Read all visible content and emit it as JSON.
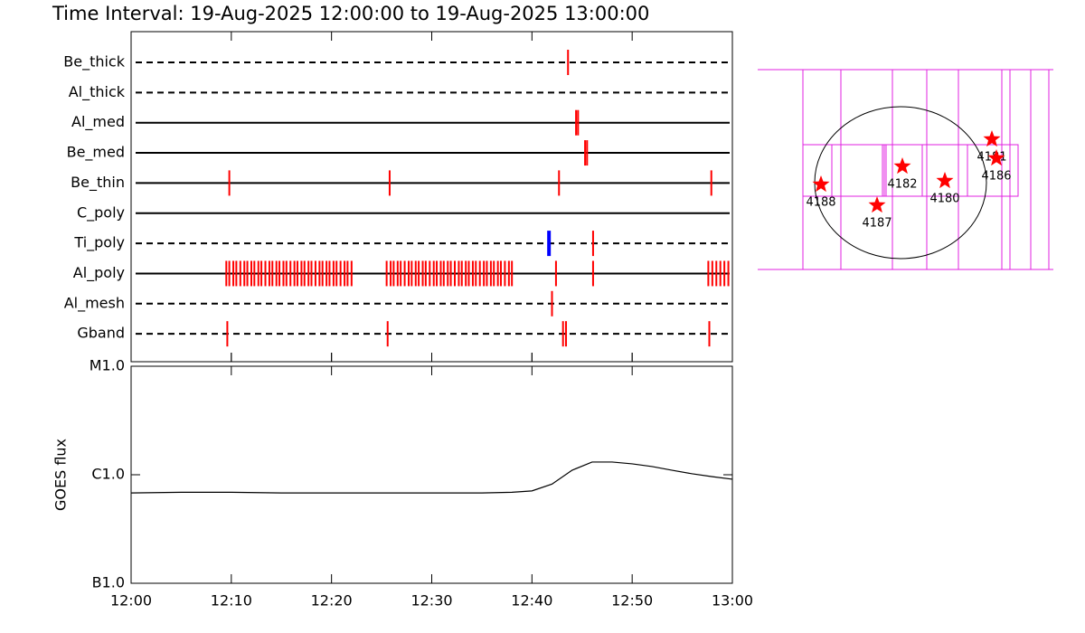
{
  "title": "Time Interval: 19-Aug-2025 12:00:00 to 19-Aug-2025 13:00:00",
  "chart_data": [
    {
      "type": "timeline",
      "xlim": [
        0,
        60
      ],
      "rows": [
        {
          "name": "Be_thick",
          "dashed": true,
          "events": [
            {
              "color": "#ff0000",
              "x": [
                43.6
              ]
            }
          ]
        },
        {
          "name": "Al_thick",
          "dashed": true,
          "events": []
        },
        {
          "name": "Al_med",
          "dashed": false,
          "events": [
            {
              "color": "#ff0000",
              "x": [
                44.4,
                44.6
              ]
            }
          ]
        },
        {
          "name": "Be_med",
          "dashed": false,
          "events": [
            {
              "color": "#ff0000",
              "x": [
                45.3,
                45.5
              ]
            }
          ]
        },
        {
          "name": "Be_thin",
          "dashed": false,
          "events": [
            {
              "color": "#ff0000",
              "x": [
                9.8,
                25.8,
                42.7,
                57.9
              ]
            }
          ]
        },
        {
          "name": "C_poly",
          "dashed": false,
          "events": []
        },
        {
          "name": "Ti_poly",
          "dashed": true,
          "events": [
            {
              "color": "#0000ff",
              "x": [
                41.7
              ]
            },
            {
              "color": "#ff0000",
              "x": [
                46.1
              ]
            }
          ]
        },
        {
          "name": "Al_poly",
          "dashed": false,
          "events": [
            {
              "color": "#ff0000",
              "x": [
                9.5,
                9.8,
                10.2,
                10.5,
                10.9,
                11.3,
                11.6,
                12.0,
                12.3,
                12.7,
                13.0,
                13.4,
                13.8,
                14.1,
                14.5,
                14.8,
                15.2,
                15.5,
                15.9,
                16.3,
                16.6,
                17.0,
                17.3,
                17.7,
                18.0,
                18.4,
                18.8,
                19.1,
                19.5,
                19.8,
                20.2,
                20.5,
                20.9,
                21.3,
                21.6,
                22.0,
                25.5,
                25.9,
                26.2,
                26.6,
                26.9,
                27.3,
                27.7,
                28.0,
                28.4,
                28.7,
                29.1,
                29.4,
                29.8,
                30.2,
                30.5,
                30.9,
                31.2,
                31.6,
                31.9,
                32.3,
                32.7,
                33.0,
                33.4,
                33.7,
                34.1,
                34.4,
                34.8,
                35.2,
                35.5,
                35.9,
                36.2,
                36.6,
                36.9,
                37.3,
                37.7,
                38.0,
                42.4,
                46.1,
                57.6,
                58.0,
                58.4,
                58.8,
                59.2,
                59.6
              ]
            }
          ]
        },
        {
          "name": "Al_mesh",
          "dashed": true,
          "events": [
            {
              "color": "#ff0000",
              "x": [
                42.0
              ]
            }
          ]
        },
        {
          "name": "Gband",
          "dashed": true,
          "events": [
            {
              "color": "#ff0000",
              "x": [
                9.6,
                25.6,
                43.1,
                43.4,
                57.7
              ]
            }
          ]
        }
      ]
    },
    {
      "type": "line",
      "ylabel": "GOES flux",
      "color": "#000000",
      "log": true,
      "x": [
        0,
        5,
        10,
        15,
        20,
        25,
        30,
        35,
        38,
        40,
        42,
        44,
        46,
        48,
        50,
        52,
        54,
        56,
        58,
        60
      ],
      "values": [
        6.8e-07,
        6.9e-07,
        6.9e-07,
        6.8e-07,
        6.8e-07,
        6.8e-07,
        6.8e-07,
        6.8e-07,
        6.9e-07,
        7.1e-07,
        8.2e-07,
        1.1e-06,
        1.31e-06,
        1.31e-06,
        1.26e-06,
        1.19e-06,
        1.1e-06,
        1.02e-06,
        9.6e-07,
        9.1e-07
      ],
      "xlim": [
        0,
        60
      ],
      "xticks": [
        {
          "value": 0,
          "label": "12:00"
        },
        {
          "value": 10,
          "label": "12:10"
        },
        {
          "value": 20,
          "label": "12:20"
        },
        {
          "value": 30,
          "label": "12:30"
        },
        {
          "value": 40,
          "label": "12:40"
        },
        {
          "value": 50,
          "label": "12:50"
        },
        {
          "value": 60,
          "label": "13:00"
        }
      ],
      "ylim": [
        1e-07,
        1e-05
      ],
      "yticks": [
        {
          "value": 1e-07,
          "label": "B1.0"
        },
        {
          "value": 1e-06,
          "label": "C1.0"
        },
        {
          "value": 1e-05,
          "label": "M1.0"
        }
      ]
    }
  ],
  "map": {
    "regions": [
      "4188",
      "4187",
      "4182",
      "4180",
      "4181",
      "4186"
    ]
  }
}
